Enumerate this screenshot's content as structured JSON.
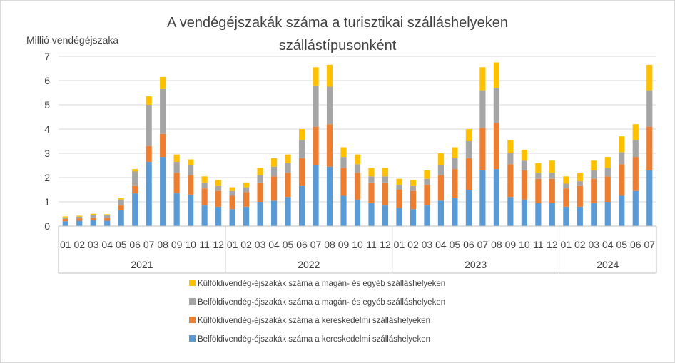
{
  "chart_data": {
    "type": "bar",
    "stacked": true,
    "title": "A vendégéjszakák száma a turisztikai szálláshelyeken",
    "subtitle": "szállástípusonként",
    "ylabel": "Millió vendégéjszaka",
    "ylim": [
      0,
      7
    ],
    "yticks": [
      "0",
      "1",
      "2",
      "3",
      "4",
      "5",
      "6",
      "7"
    ],
    "grid": true,
    "legend_position": "bottom",
    "years": [
      {
        "label": "2021",
        "months": [
          "01",
          "02",
          "03",
          "04",
          "05",
          "06",
          "07",
          "08",
          "09",
          "10",
          "11",
          "12"
        ]
      },
      {
        "label": "2022",
        "months": [
          "01",
          "02",
          "03",
          "04",
          "05",
          "06",
          "07",
          "08",
          "09",
          "10",
          "11",
          "12"
        ]
      },
      {
        "label": "2023",
        "months": [
          "01",
          "02",
          "03",
          "04",
          "05",
          "06",
          "07",
          "08",
          "09",
          "10",
          "11",
          "12"
        ]
      },
      {
        "label": "2024",
        "months": [
          "01",
          "02",
          "03",
          "04",
          "05",
          "06",
          "07"
        ]
      }
    ],
    "series": [
      {
        "name": "Belföldivendég-éjszakák száma a kereskedelmi szálláshelyeken",
        "color": "#5b9bd5",
        "values": [
          0.2,
          0.22,
          0.24,
          0.22,
          0.65,
          1.35,
          2.65,
          2.85,
          1.35,
          1.3,
          0.85,
          0.8,
          0.7,
          0.8,
          1.0,
          1.05,
          1.2,
          1.65,
          2.5,
          2.45,
          1.25,
          1.1,
          0.95,
          0.85,
          0.75,
          0.7,
          0.85,
          1.05,
          1.15,
          1.5,
          2.3,
          2.35,
          1.2,
          1.1,
          0.95,
          0.95,
          0.8,
          0.8,
          0.95,
          1.0,
          1.25,
          1.45,
          2.3
        ]
      },
      {
        "name": "Külföldivendég-éjszakák száma a kereskedelmi szálláshelyeken",
        "color": "#ed7d31",
        "values": [
          0.1,
          0.1,
          0.12,
          0.12,
          0.2,
          0.3,
          0.65,
          0.95,
          0.85,
          0.8,
          0.7,
          0.65,
          0.55,
          0.6,
          0.8,
          1.0,
          1.0,
          1.15,
          1.6,
          1.75,
          1.15,
          1.1,
          0.85,
          0.95,
          0.75,
          0.75,
          0.85,
          1.05,
          1.2,
          1.3,
          1.75,
          1.9,
          1.35,
          1.2,
          1.0,
          1.0,
          0.75,
          0.85,
          1.0,
          1.05,
          1.3,
          1.4,
          1.8
        ]
      },
      {
        "name": "Belföldivendég-éjszakák száma a magán- és egyéb szálláshelyeken",
        "color": "#a5a5a5",
        "values": [
          0.06,
          0.07,
          0.1,
          0.1,
          0.25,
          0.6,
          1.7,
          1.85,
          0.45,
          0.4,
          0.25,
          0.2,
          0.2,
          0.2,
          0.3,
          0.4,
          0.4,
          0.75,
          1.7,
          1.55,
          0.45,
          0.35,
          0.25,
          0.25,
          0.2,
          0.2,
          0.25,
          0.4,
          0.45,
          0.7,
          1.55,
          1.45,
          0.45,
          0.4,
          0.25,
          0.25,
          0.2,
          0.2,
          0.35,
          0.35,
          0.5,
          0.7,
          1.5
        ]
      },
      {
        "name": "Külföldivendég-éjszakák száma a magán- és egyéb szálláshelyeken",
        "color": "#ffc000",
        "values": [
          0.04,
          0.04,
          0.05,
          0.05,
          0.05,
          0.1,
          0.35,
          0.5,
          0.3,
          0.25,
          0.25,
          0.25,
          0.15,
          0.2,
          0.3,
          0.35,
          0.35,
          0.45,
          0.75,
          0.9,
          0.4,
          0.4,
          0.35,
          0.35,
          0.25,
          0.25,
          0.35,
          0.5,
          0.45,
          0.5,
          0.95,
          1.05,
          0.55,
          0.45,
          0.4,
          0.5,
          0.3,
          0.35,
          0.4,
          0.45,
          0.65,
          0.65,
          1.05
        ]
      }
    ],
    "legend_order": [
      3,
      2,
      1,
      0
    ]
  }
}
